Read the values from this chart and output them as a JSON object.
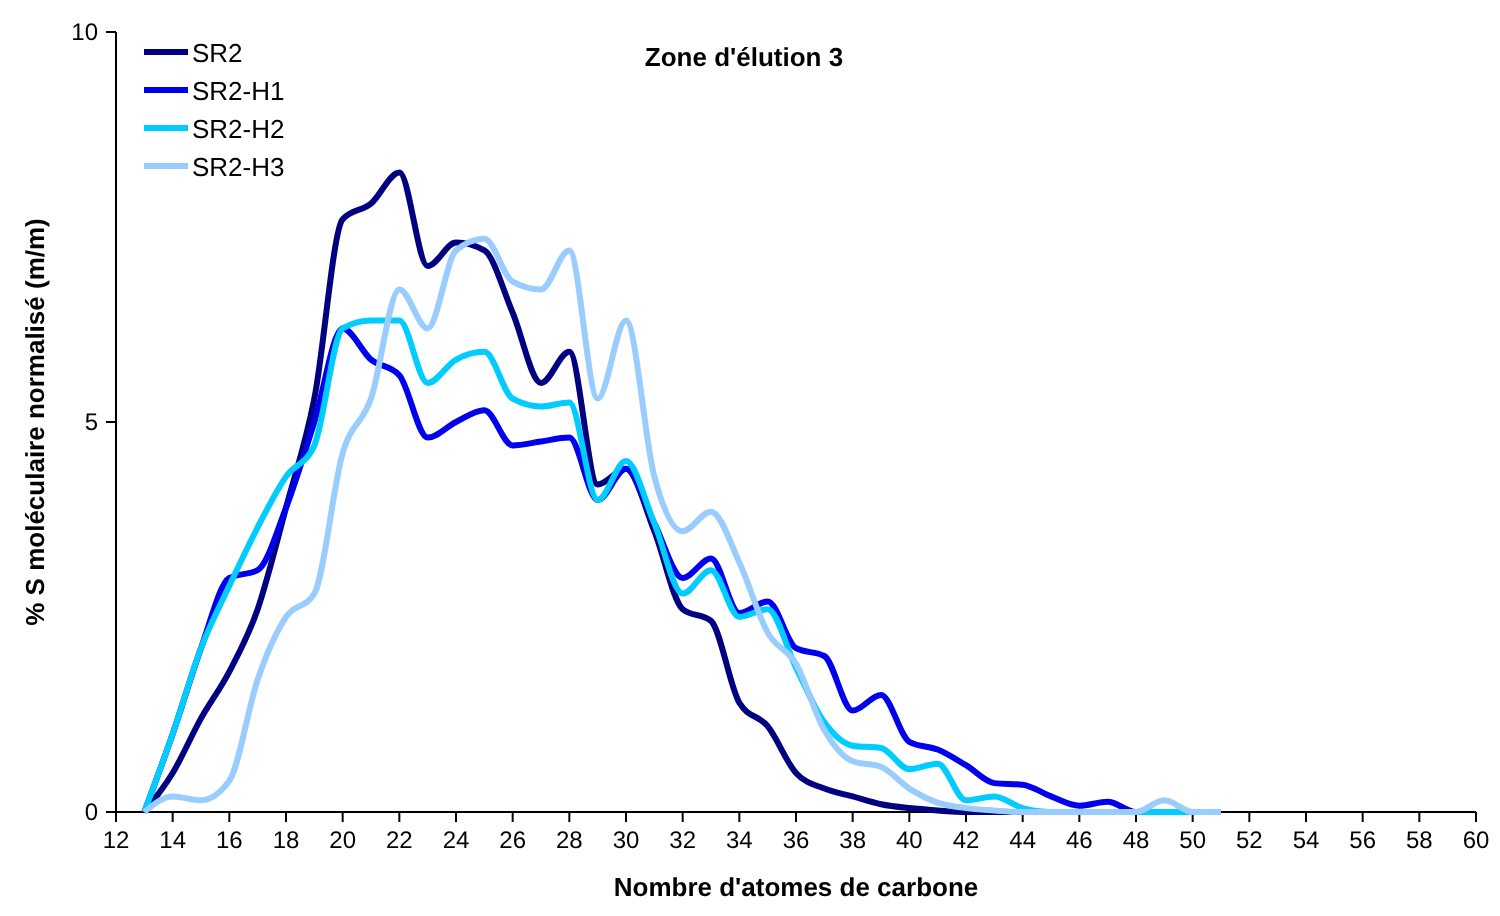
{
  "chart_data": {
    "type": "line",
    "title": "Zone d'élution 3",
    "xlabel": "Nombre d'atomes de carbone",
    "ylabel": "% S moléculaire normalisé (m/m)",
    "x": [
      13,
      14,
      15,
      16,
      17,
      18,
      19,
      20,
      21,
      22,
      23,
      24,
      25,
      26,
      27,
      28,
      29,
      30,
      31,
      32,
      33,
      34,
      35,
      36,
      37,
      38,
      39,
      40,
      41,
      42,
      43,
      44,
      45,
      46,
      47,
      48,
      49,
      50,
      51
    ],
    "series": [
      {
        "name": "SR2",
        "color": "#000080",
        "x": [
          13,
          14,
          15,
          16,
          17,
          18,
          19,
          20,
          21,
          22,
          23,
          24,
          25,
          26,
          27,
          28,
          29,
          30,
          31,
          32,
          33,
          34,
          35,
          36,
          37,
          38,
          39,
          40,
          41,
          42,
          43,
          44,
          45
        ],
        "values": [
          0,
          0.5,
          1.2,
          1.8,
          2.6,
          3.9,
          5.3,
          7.6,
          7.8,
          8.2,
          7.0,
          7.3,
          7.2,
          6.4,
          5.5,
          5.9,
          4.2,
          4.4,
          3.6,
          2.6,
          2.45,
          1.4,
          1.1,
          0.5,
          0.3,
          0.2,
          0.1,
          0.05,
          0.02,
          0,
          0,
          0,
          0
        ]
      },
      {
        "name": "SR2-H1",
        "color": "#0000ee",
        "x": [
          13,
          14,
          15,
          16,
          17,
          18,
          19,
          20,
          21,
          22,
          23,
          24,
          25,
          26,
          27,
          28,
          29,
          30,
          31,
          32,
          33,
          34,
          35,
          36,
          37,
          38,
          39,
          40,
          41,
          42,
          43,
          44,
          45,
          46,
          47,
          48,
          49
        ],
        "values": [
          0,
          1.0,
          2.1,
          3.0,
          3.1,
          3.9,
          5.0,
          6.2,
          5.8,
          5.6,
          4.8,
          5.0,
          5.15,
          4.7,
          4.75,
          4.8,
          4.0,
          4.4,
          3.7,
          3.0,
          3.25,
          2.55,
          2.7,
          2.1,
          2.0,
          1.3,
          1.5,
          0.9,
          0.8,
          0.6,
          0.37,
          0.35,
          0.2,
          0.08,
          0.13,
          0,
          0
        ]
      },
      {
        "name": "SR2-H2",
        "color": "#00ccff",
        "values": [
          0,
          1.0,
          2.1,
          2.9,
          3.65,
          4.3,
          4.7,
          6.2,
          6.3,
          6.3,
          5.5,
          5.8,
          5.9,
          5.3,
          5.2,
          5.25,
          4.0,
          4.5,
          3.7,
          2.8,
          3.1,
          2.5,
          2.6,
          1.85,
          1.15,
          0.85,
          0.82,
          0.55,
          0.62,
          0.15,
          0.2,
          0.05,
          0,
          0,
          0,
          0,
          0,
          0,
          0
        ]
      },
      {
        "name": "SR2-H3",
        "color": "#99ccff",
        "values": [
          0,
          0.2,
          0.15,
          0.4,
          1.7,
          2.5,
          2.8,
          4.6,
          5.3,
          6.7,
          6.2,
          7.2,
          7.35,
          6.8,
          6.7,
          7.2,
          5.3,
          6.3,
          4.3,
          3.6,
          3.85,
          3.2,
          2.3,
          1.9,
          1.05,
          0.65,
          0.58,
          0.3,
          0.12,
          0.05,
          0.02,
          0,
          0,
          0,
          0,
          0,
          0.15,
          0,
          0
        ]
      }
    ],
    "xlim": [
      12,
      60
    ],
    "xticks": [
      12,
      14,
      16,
      18,
      20,
      22,
      24,
      26,
      28,
      30,
      32,
      34,
      36,
      38,
      40,
      42,
      44,
      46,
      48,
      50,
      52,
      54,
      56,
      58,
      60
    ],
    "ylim": [
      0,
      10
    ],
    "yticks": [
      0,
      5,
      10
    ],
    "grid": false,
    "legend": "top left",
    "marker": "none",
    "line_style": "solid"
  }
}
